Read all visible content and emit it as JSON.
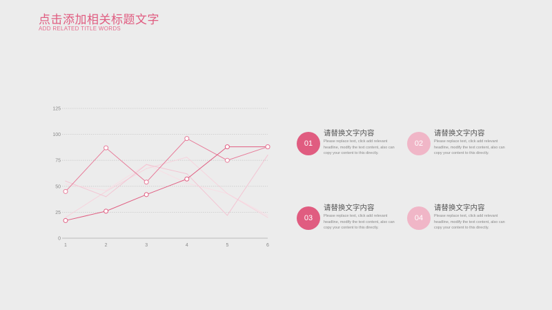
{
  "header": {
    "title": "点击添加相关标题文字",
    "subtitle": "ADD RELATED TITLE WORDS"
  },
  "colors": {
    "accent": "#e05c80",
    "accent_light": "#f0b6c7",
    "grid": "#c8c8c8",
    "axis": "#aaaaaa"
  },
  "chart_data": {
    "type": "line",
    "x": [
      1,
      2,
      3,
      4,
      5,
      6
    ],
    "ylim": [
      0,
      125
    ],
    "yticks": [
      "0",
      "25",
      "50",
      "75",
      "100",
      "125"
    ],
    "grid": true,
    "series": [
      {
        "values": [
          17,
          26,
          42,
          57,
          88,
          88
        ],
        "color": "#e05c80",
        "marker": true
      },
      {
        "values": [
          45,
          87,
          54,
          96,
          75,
          88
        ],
        "color": "#e77a98",
        "marker": false
      },
      {
        "values": [
          55,
          40,
          71,
          62,
          22,
          80
        ],
        "color": "#f3c4d2",
        "marker": false
      },
      {
        "values": [
          20,
          45,
          67,
          78,
          43,
          20
        ],
        "color": "#f6d3dd",
        "marker": false
      },
      {
        "values": [
          52,
          46,
          71,
          53,
          43,
          22
        ],
        "color": "#f8dde4",
        "marker": false
      }
    ]
  },
  "items": [
    {
      "number": "01",
      "title": "请替换文字内容",
      "desc": "Please replace text, click add relevant headline, modify the text content, also can copy your content to this directly.",
      "color": "#e05c80"
    },
    {
      "number": "02",
      "title": "请替换文字内容",
      "desc": "Please replace text, click add relevant headline, modify the text content, also can copy your content to this directly.",
      "color": "#f0b6c7"
    },
    {
      "number": "03",
      "title": "请替换文字内容",
      "desc": "Please replace text, click add relevant headline, modify the text content, also can copy your content to this directly.",
      "color": "#e05c80"
    },
    {
      "number": "04",
      "title": "请替换文字内容",
      "desc": "Please replace text, click add relevant headline, modify the text content, also can copy your content to this directly.",
      "color": "#f0b6c7"
    }
  ]
}
